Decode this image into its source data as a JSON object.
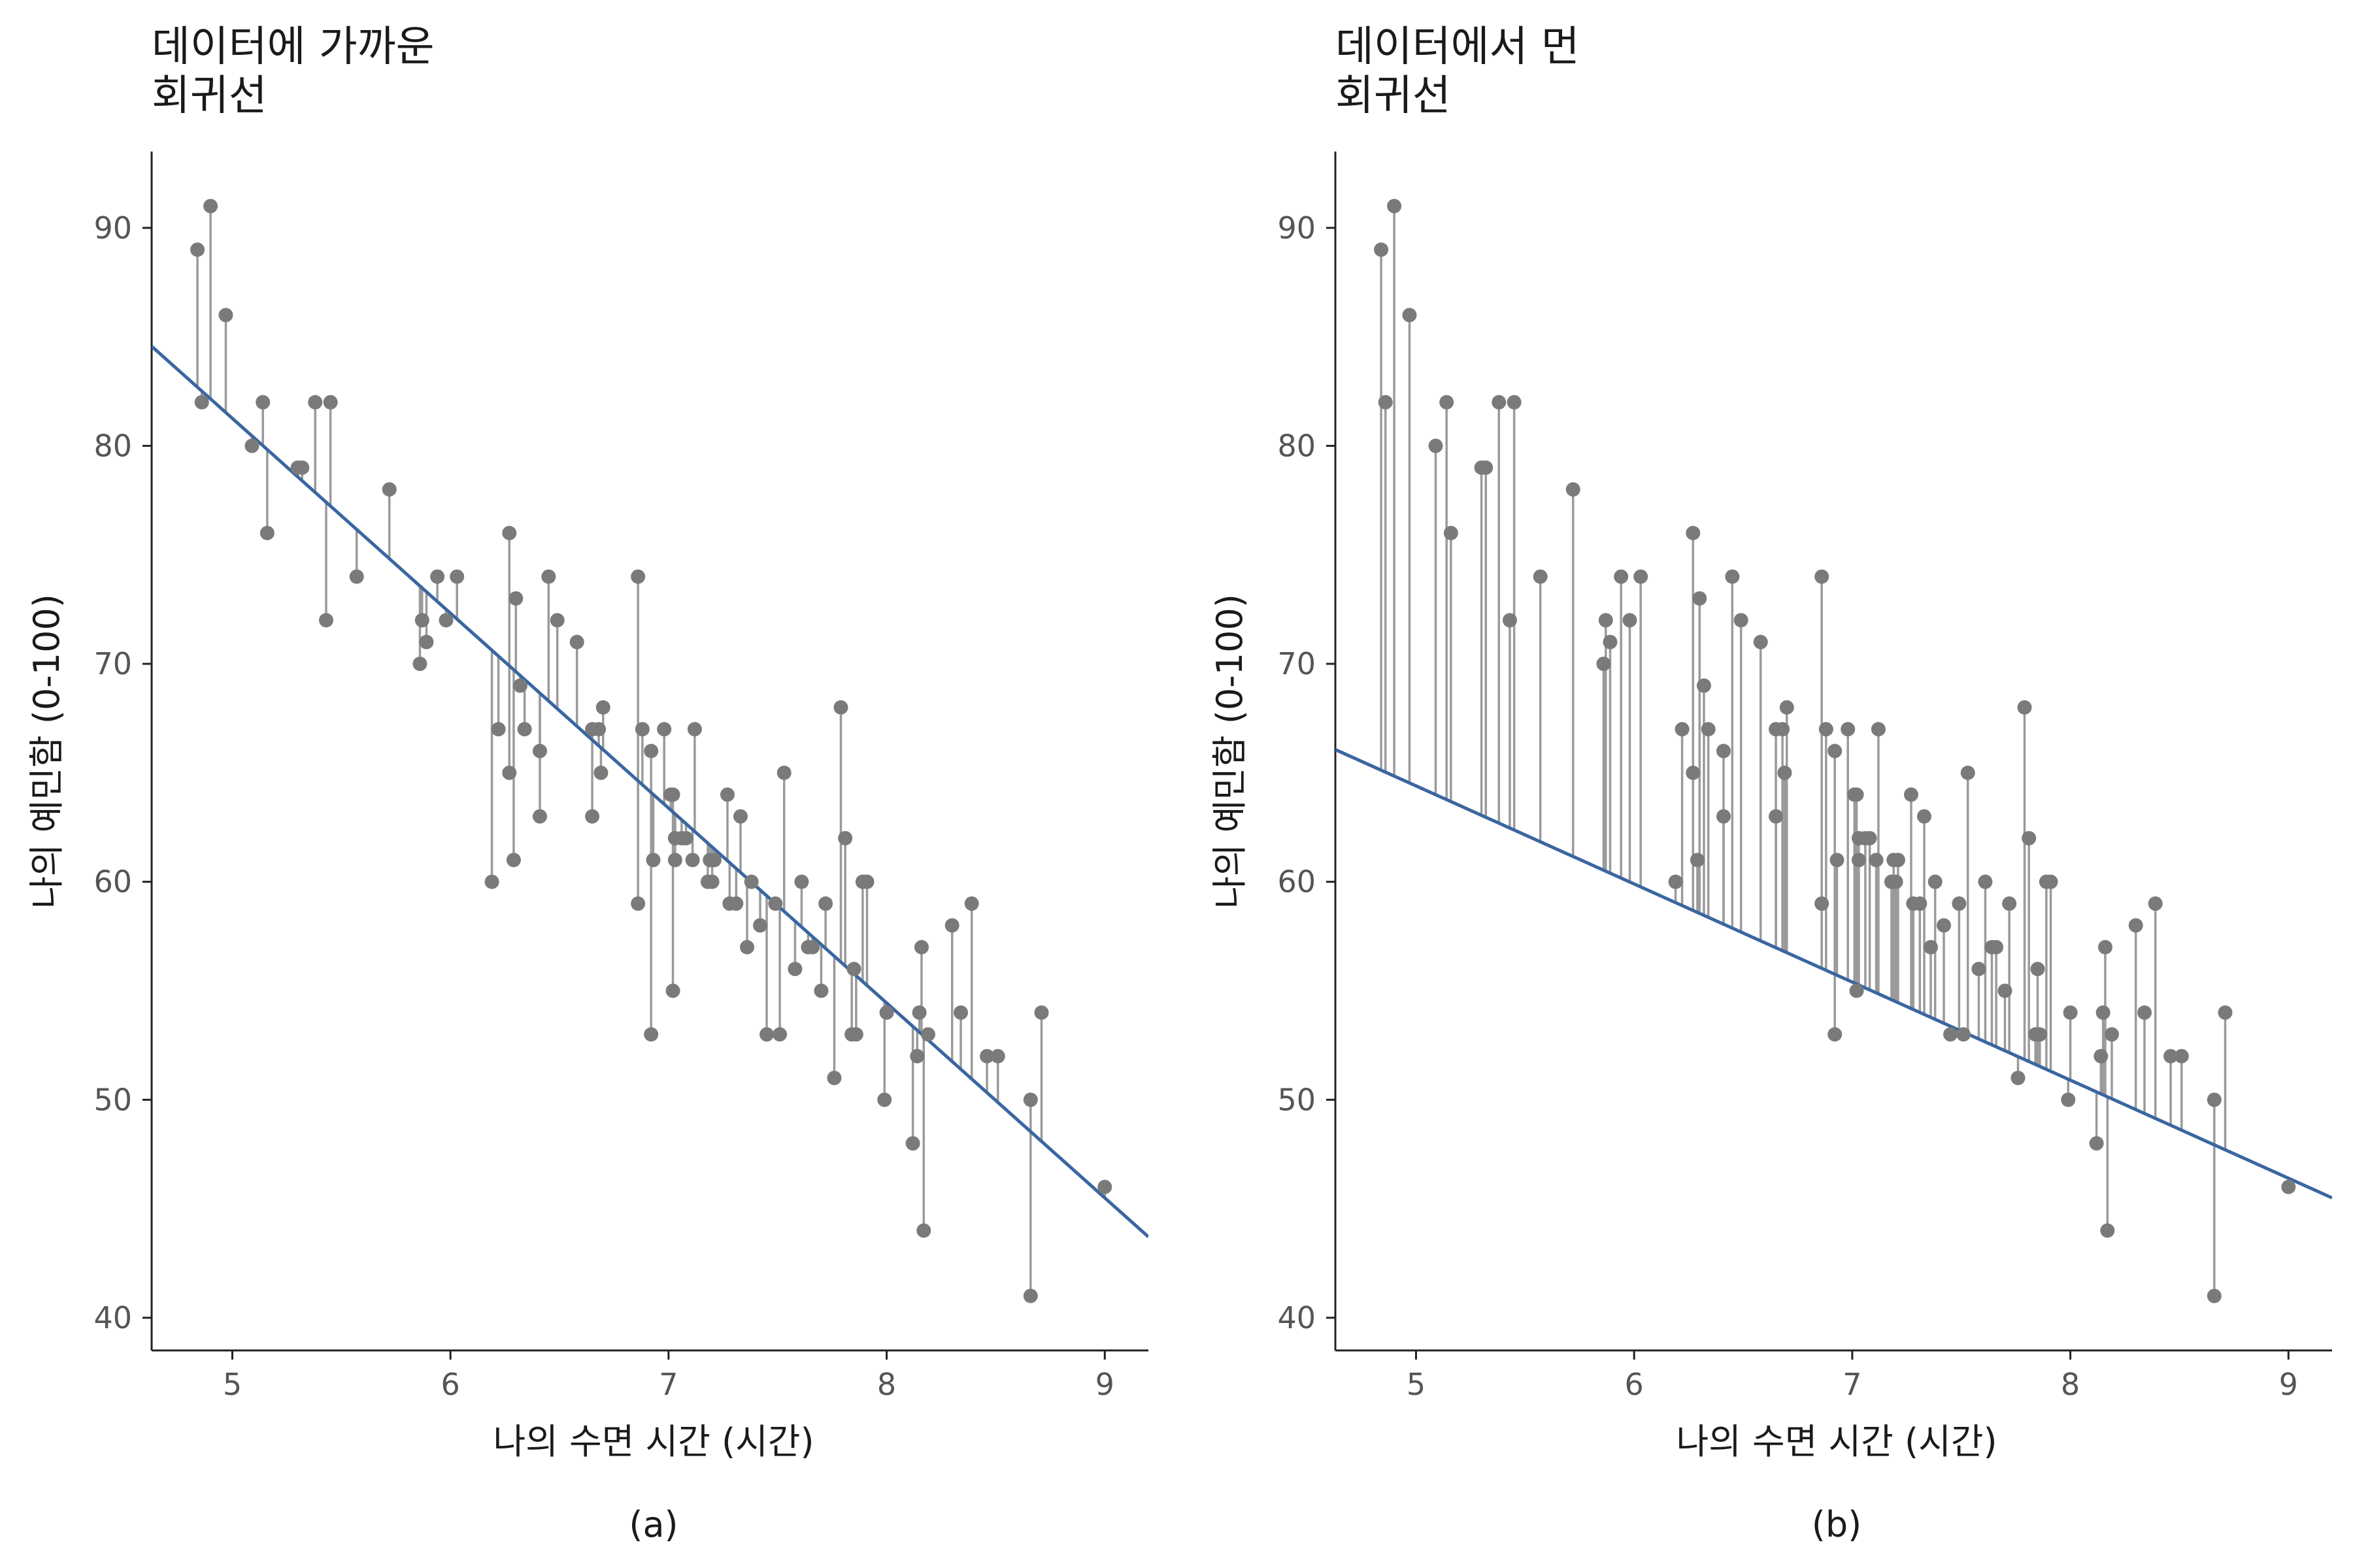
{
  "colors": {
    "point": "#7a7a7a",
    "residual": "#9a9a9a",
    "regression": "#3a66a0",
    "axis": "#222222"
  },
  "chart_data": [
    {
      "type": "scatter",
      "panel_label": "(a)",
      "title": [
        "데이터에 가까운",
        "회귀선"
      ],
      "xlabel": "나의 수면 시간 (시간)",
      "ylabel": "나의 예민함 (0-100)",
      "xlim": [
        4.63,
        9.2
      ],
      "ylim": [
        38.5,
        93.5
      ],
      "xticks": [
        5,
        6,
        7,
        8,
        9
      ],
      "yticks": [
        40,
        50,
        60,
        70,
        80,
        90
      ],
      "grid": false,
      "regression_line": {
        "intercept": 125.96,
        "slope": -8.94
      },
      "points": [
        [
          4.84,
          89
        ],
        [
          4.86,
          82
        ],
        [
          4.9,
          91
        ],
        [
          4.97,
          86
        ],
        [
          5.09,
          80
        ],
        [
          5.14,
          82
        ],
        [
          5.16,
          76
        ],
        [
          5.3,
          79
        ],
        [
          5.32,
          79
        ],
        [
          5.38,
          82
        ],
        [
          5.43,
          72
        ],
        [
          5.45,
          82
        ],
        [
          5.57,
          74
        ],
        [
          5.72,
          78
        ],
        [
          5.86,
          70
        ],
        [
          5.87,
          72
        ],
        [
          5.89,
          71
        ],
        [
          5.94,
          74
        ],
        [
          5.98,
          72
        ],
        [
          6.03,
          74
        ],
        [
          6.19,
          60
        ],
        [
          6.22,
          67
        ],
        [
          6.27,
          65
        ],
        [
          6.27,
          76
        ],
        [
          6.29,
          61
        ],
        [
          6.3,
          73
        ],
        [
          6.32,
          69
        ],
        [
          6.34,
          67
        ],
        [
          6.41,
          63
        ],
        [
          6.41,
          66
        ],
        [
          6.45,
          74
        ],
        [
          6.49,
          72
        ],
        [
          6.58,
          71
        ],
        [
          6.65,
          63
        ],
        [
          6.65,
          67
        ],
        [
          6.68,
          67
        ],
        [
          6.69,
          65
        ],
        [
          6.7,
          68
        ],
        [
          6.86,
          59
        ],
        [
          6.86,
          74
        ],
        [
          6.88,
          67
        ],
        [
          6.92,
          53
        ],
        [
          6.92,
          66
        ],
        [
          6.93,
          61
        ],
        [
          6.98,
          67
        ],
        [
          7.01,
          64
        ],
        [
          7.02,
          64
        ],
        [
          7.02,
          55
        ],
        [
          7.03,
          61
        ],
        [
          7.03,
          62
        ],
        [
          7.06,
          62
        ],
        [
          7.08,
          62
        ],
        [
          7.11,
          61
        ],
        [
          7.12,
          67
        ],
        [
          7.18,
          60
        ],
        [
          7.19,
          61
        ],
        [
          7.2,
          60
        ],
        [
          7.21,
          61
        ],
        [
          7.27,
          64
        ],
        [
          7.28,
          59
        ],
        [
          7.31,
          59
        ],
        [
          7.33,
          63
        ],
        [
          7.36,
          57
        ],
        [
          7.38,
          60
        ],
        [
          7.42,
          58
        ],
        [
          7.45,
          53
        ],
        [
          7.49,
          59
        ],
        [
          7.51,
          53
        ],
        [
          7.53,
          65
        ],
        [
          7.58,
          56
        ],
        [
          7.61,
          60
        ],
        [
          7.64,
          57
        ],
        [
          7.66,
          57
        ],
        [
          7.7,
          55
        ],
        [
          7.72,
          59
        ],
        [
          7.76,
          51
        ],
        [
          7.79,
          68
        ],
        [
          7.81,
          62
        ],
        [
          7.84,
          53
        ],
        [
          7.85,
          56
        ],
        [
          7.86,
          53
        ],
        [
          7.89,
          60
        ],
        [
          7.91,
          60
        ],
        [
          7.99,
          50
        ],
        [
          8.0,
          54
        ],
        [
          8.12,
          48
        ],
        [
          8.14,
          52
        ],
        [
          8.15,
          54
        ],
        [
          8.16,
          57
        ],
        [
          8.17,
          44
        ],
        [
          8.19,
          53
        ],
        [
          8.3,
          58
        ],
        [
          8.34,
          54
        ],
        [
          8.39,
          59
        ],
        [
          8.46,
          52
        ],
        [
          8.51,
          52
        ],
        [
          8.66,
          41
        ],
        [
          8.66,
          50
        ],
        [
          8.71,
          54
        ],
        [
          9.0,
          46
        ]
      ]
    },
    {
      "type": "scatter",
      "panel_label": "(b)",
      "title": [
        "데이터에서 먼",
        "회귀선"
      ],
      "xlabel": "나의 수면 시간 (시간)",
      "ylabel": "나의 예민함 (0-100)",
      "xlim": [
        4.63,
        9.2
      ],
      "ylim": [
        38.5,
        93.5
      ],
      "xticks": [
        5,
        6,
        7,
        8,
        9
      ],
      "yticks": [
        40,
        50,
        60,
        70,
        80,
        90
      ],
      "grid": false,
      "regression_line": {
        "intercept": 86.9,
        "slope": -4.5
      },
      "points": [
        [
          4.84,
          89
        ],
        [
          4.86,
          82
        ],
        [
          4.9,
          91
        ],
        [
          4.97,
          86
        ],
        [
          5.09,
          80
        ],
        [
          5.14,
          82
        ],
        [
          5.16,
          76
        ],
        [
          5.3,
          79
        ],
        [
          5.32,
          79
        ],
        [
          5.38,
          82
        ],
        [
          5.43,
          72
        ],
        [
          5.45,
          82
        ],
        [
          5.57,
          74
        ],
        [
          5.72,
          78
        ],
        [
          5.86,
          70
        ],
        [
          5.87,
          72
        ],
        [
          5.89,
          71
        ],
        [
          5.94,
          74
        ],
        [
          5.98,
          72
        ],
        [
          6.03,
          74
        ],
        [
          6.19,
          60
        ],
        [
          6.22,
          67
        ],
        [
          6.27,
          65
        ],
        [
          6.27,
          76
        ],
        [
          6.29,
          61
        ],
        [
          6.3,
          73
        ],
        [
          6.32,
          69
        ],
        [
          6.34,
          67
        ],
        [
          6.41,
          63
        ],
        [
          6.41,
          66
        ],
        [
          6.45,
          74
        ],
        [
          6.49,
          72
        ],
        [
          6.58,
          71
        ],
        [
          6.65,
          63
        ],
        [
          6.65,
          67
        ],
        [
          6.68,
          67
        ],
        [
          6.69,
          65
        ],
        [
          6.7,
          68
        ],
        [
          6.86,
          59
        ],
        [
          6.86,
          74
        ],
        [
          6.88,
          67
        ],
        [
          6.92,
          53
        ],
        [
          6.92,
          66
        ],
        [
          6.93,
          61
        ],
        [
          6.98,
          67
        ],
        [
          7.01,
          64
        ],
        [
          7.02,
          64
        ],
        [
          7.02,
          55
        ],
        [
          7.03,
          61
        ],
        [
          7.03,
          62
        ],
        [
          7.06,
          62
        ],
        [
          7.08,
          62
        ],
        [
          7.11,
          61
        ],
        [
          7.12,
          67
        ],
        [
          7.18,
          60
        ],
        [
          7.19,
          61
        ],
        [
          7.2,
          60
        ],
        [
          7.21,
          61
        ],
        [
          7.27,
          64
        ],
        [
          7.28,
          59
        ],
        [
          7.31,
          59
        ],
        [
          7.33,
          63
        ],
        [
          7.36,
          57
        ],
        [
          7.38,
          60
        ],
        [
          7.42,
          58
        ],
        [
          7.45,
          53
        ],
        [
          7.49,
          59
        ],
        [
          7.51,
          53
        ],
        [
          7.53,
          65
        ],
        [
          7.58,
          56
        ],
        [
          7.61,
          60
        ],
        [
          7.64,
          57
        ],
        [
          7.66,
          57
        ],
        [
          7.7,
          55
        ],
        [
          7.72,
          59
        ],
        [
          7.76,
          51
        ],
        [
          7.79,
          68
        ],
        [
          7.81,
          62
        ],
        [
          7.84,
          53
        ],
        [
          7.85,
          56
        ],
        [
          7.86,
          53
        ],
        [
          7.89,
          60
        ],
        [
          7.91,
          60
        ],
        [
          7.99,
          50
        ],
        [
          8.0,
          54
        ],
        [
          8.12,
          48
        ],
        [
          8.14,
          52
        ],
        [
          8.15,
          54
        ],
        [
          8.16,
          57
        ],
        [
          8.17,
          44
        ],
        [
          8.19,
          53
        ],
        [
          8.3,
          58
        ],
        [
          8.34,
          54
        ],
        [
          8.39,
          59
        ],
        [
          8.46,
          52
        ],
        [
          8.51,
          52
        ],
        [
          8.66,
          41
        ],
        [
          8.66,
          50
        ],
        [
          8.71,
          54
        ],
        [
          9.0,
          46
        ]
      ]
    }
  ]
}
